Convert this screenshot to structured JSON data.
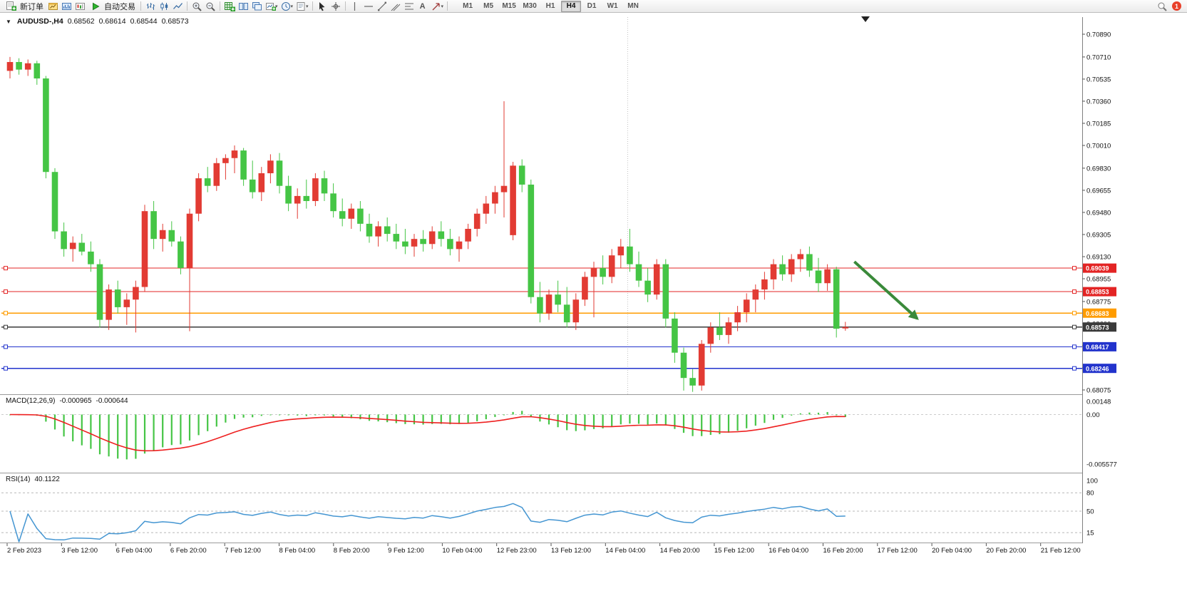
{
  "toolbar": {
    "new_order_label": "新订单",
    "auto_trading_label": "自动交易",
    "text_tool_glyph": "A",
    "timeframes": [
      "M1",
      "M5",
      "M15",
      "M30",
      "H1",
      "H4",
      "D1",
      "W1",
      "MN"
    ],
    "active_timeframe": "H4",
    "notification_count": "1"
  },
  "chart_header": {
    "symbol_period": "AUDUSD-,H4",
    "open": "0.68562",
    "high": "0.68614",
    "low": "0.68544",
    "close": "0.68573",
    "one_click_glyph": "▼"
  },
  "price_axis_labels": [
    "0.70890",
    "0.70710",
    "0.70535",
    "0.70360",
    "0.70185",
    "0.70010",
    "0.69830",
    "0.69655",
    "0.69480",
    "0.69305",
    "0.69130",
    "0.68955",
    "0.68775",
    "0.68600",
    "0.68425",
    "0.68250",
    "0.68075"
  ],
  "time_axis_labels": [
    "2 Feb 2023",
    "3 Feb 12:00",
    "6 Feb 04:00",
    "6 Feb 20:00",
    "7 Feb 12:00",
    "8 Feb 04:00",
    "8 Feb 20:00",
    "9 Feb 12:00",
    "10 Feb 04:00",
    "12 Feb 23:00",
    "13 Feb 12:00",
    "14 Feb 04:00",
    "14 Feb 20:00",
    "15 Feb 12:00",
    "16 Feb 04:00",
    "16 Feb 20:00",
    "17 Feb 12:00",
    "20 Feb 04:00",
    "20 Feb 20:00",
    "21 Feb 12:00"
  ],
  "hlines": [
    {
      "price": 0.69039,
      "label": "0.69039",
      "color": "#e32424",
      "kind": "resistance-line"
    },
    {
      "price": 0.68853,
      "label": "0.68853",
      "color": "#e32424",
      "kind": "resistance-line"
    },
    {
      "price": 0.68683,
      "label": "0.68683",
      "color": "#ff9c00",
      "kind": "support-line"
    },
    {
      "price": 0.68573,
      "label": "0.68573",
      "color": "#3a3a3a",
      "kind": "current-price-line"
    },
    {
      "price": 0.68417,
      "label": "0.68417",
      "color": "#2233cc",
      "kind": "support-line"
    },
    {
      "price": 0.68246,
      "label": "0.68246",
      "color": "#2233cc",
      "kind": "support-line"
    }
  ],
  "arrow": {
    "from_bar": 94,
    "from_price": 0.6909,
    "to_bar": 101,
    "to_price": 0.6864,
    "color": "#3a8a3a"
  },
  "macd_panel": {
    "title": "MACD(12,26,9)",
    "value_main": "-0.000965",
    "value_signal": "-0.000644",
    "axis_labels": [
      {
        "v": 0.00148,
        "label": "0.00148"
      },
      {
        "v": 0,
        "label": "0.00"
      },
      {
        "v": -0.005577,
        "label": "-0.005577"
      }
    ]
  },
  "rsi_panel": {
    "title": "RSI(14)",
    "value": "40.1122",
    "axis_labels": [
      {
        "v": 100,
        "label": "100"
      },
      {
        "v": 80,
        "label": "80"
      },
      {
        "v": 50,
        "label": "50"
      },
      {
        "v": 15,
        "label": "15"
      }
    ],
    "levels": [
      80,
      50,
      15
    ]
  },
  "colors": {
    "bull": "#e23b33",
    "bear": "#45c545",
    "macd_hist": "#45c545",
    "macd_signal": "#ee2020",
    "rsi_line": "#4596d2",
    "line_red": "#e32424",
    "line_orange": "#ff9c00",
    "line_blue": "#2233cc",
    "line_black": "#3a3a3a",
    "arrow_green": "#3a8a3a"
  },
  "chart_data": {
    "type": "candlestick",
    "symbol": "AUDUSD-",
    "period": "H4",
    "color_convention": "CN: red = up, green = down",
    "price_range": [
      0.68075,
      0.7089
    ],
    "indicators": [
      "MACD(12,26,9)",
      "RSI(14)"
    ],
    "candles": [
      [
        0.706,
        0.7071,
        0.7054,
        0.7067
      ],
      [
        0.7067,
        0.707,
        0.7057,
        0.7061
      ],
      [
        0.7061,
        0.7069,
        0.7056,
        0.7066
      ],
      [
        0.7066,
        0.7068,
        0.7049,
        0.7054
      ],
      [
        0.7054,
        0.7056,
        0.6975,
        0.698
      ],
      [
        0.698,
        0.6983,
        0.6927,
        0.6933
      ],
      [
        0.6933,
        0.694,
        0.6913,
        0.6919
      ],
      [
        0.6919,
        0.6929,
        0.6909,
        0.6924
      ],
      [
        0.6924,
        0.6931,
        0.6914,
        0.6917
      ],
      [
        0.6917,
        0.6925,
        0.6901,
        0.6907
      ],
      [
        0.6907,
        0.6911,
        0.6857,
        0.6863
      ],
      [
        0.6863,
        0.6891,
        0.6855,
        0.6887
      ],
      [
        0.6887,
        0.6894,
        0.6868,
        0.6873
      ],
      [
        0.6873,
        0.6884,
        0.6859,
        0.6879
      ],
      [
        0.6879,
        0.6894,
        0.6853,
        0.6889
      ],
      [
        0.6889,
        0.6954,
        0.6885,
        0.6949
      ],
      [
        0.6949,
        0.6957,
        0.6919,
        0.6927
      ],
      [
        0.6927,
        0.6939,
        0.6917,
        0.6934
      ],
      [
        0.6934,
        0.6941,
        0.6921,
        0.6925
      ],
      [
        0.6925,
        0.6929,
        0.6899,
        0.6904
      ],
      [
        0.6904,
        0.6951,
        0.6854,
        0.6947
      ],
      [
        0.6947,
        0.6979,
        0.6941,
        0.6975
      ],
      [
        0.6975,
        0.6984,
        0.6964,
        0.6969
      ],
      [
        0.6969,
        0.6991,
        0.6965,
        0.6987
      ],
      [
        0.6987,
        0.6994,
        0.6974,
        0.6991
      ],
      [
        0.6991,
        0.7001,
        0.6979,
        0.6997
      ],
      [
        0.6997,
        0.6999,
        0.6969,
        0.6974
      ],
      [
        0.6974,
        0.6989,
        0.6959,
        0.6964
      ],
      [
        0.6964,
        0.6984,
        0.6957,
        0.6979
      ],
      [
        0.6979,
        0.6994,
        0.6971,
        0.6989
      ],
      [
        0.6989,
        0.6995,
        0.6963,
        0.6969
      ],
      [
        0.6969,
        0.6977,
        0.6949,
        0.6955
      ],
      [
        0.6955,
        0.6967,
        0.6943,
        0.6961
      ],
      [
        0.6961,
        0.6974,
        0.6951,
        0.6957
      ],
      [
        0.6957,
        0.6979,
        0.6953,
        0.6975
      ],
      [
        0.6975,
        0.6981,
        0.6957,
        0.6963
      ],
      [
        0.6963,
        0.6971,
        0.6944,
        0.6949
      ],
      [
        0.6949,
        0.6959,
        0.6937,
        0.6943
      ],
      [
        0.6943,
        0.6955,
        0.6935,
        0.6951
      ],
      [
        0.6951,
        0.6957,
        0.6933,
        0.6939
      ],
      [
        0.6939,
        0.6947,
        0.6924,
        0.6929
      ],
      [
        0.6929,
        0.6941,
        0.6921,
        0.6937
      ],
      [
        0.6937,
        0.6944,
        0.6925,
        0.6931
      ],
      [
        0.6931,
        0.6939,
        0.6919,
        0.6925
      ],
      [
        0.6925,
        0.6935,
        0.6915,
        0.6921
      ],
      [
        0.6921,
        0.6931,
        0.6913,
        0.6927
      ],
      [
        0.6927,
        0.6934,
        0.6917,
        0.6923
      ],
      [
        0.6923,
        0.6937,
        0.6919,
        0.6933
      ],
      [
        0.6933,
        0.6941,
        0.6921,
        0.6927
      ],
      [
        0.6927,
        0.6935,
        0.6914,
        0.6919
      ],
      [
        0.6919,
        0.6929,
        0.6909,
        0.6925
      ],
      [
        0.6925,
        0.6939,
        0.6919,
        0.6935
      ],
      [
        0.6935,
        0.6951,
        0.6929,
        0.6947
      ],
      [
        0.6947,
        0.6961,
        0.6939,
        0.6955
      ],
      [
        0.6955,
        0.6969,
        0.6947,
        0.6964
      ],
      [
        0.6964,
        0.7036,
        0.6944,
        0.6969
      ],
      [
        0.693,
        0.6988,
        0.6926,
        0.6985
      ],
      [
        0.6985,
        0.699,
        0.6964,
        0.697
      ],
      [
        0.697,
        0.6974,
        0.6876,
        0.6881
      ],
      [
        0.6881,
        0.6893,
        0.6861,
        0.6868
      ],
      [
        0.6868,
        0.6887,
        0.6863,
        0.6883
      ],
      [
        0.6883,
        0.6894,
        0.6869,
        0.6875
      ],
      [
        0.6875,
        0.6889,
        0.6857,
        0.6861
      ],
      [
        0.6861,
        0.6884,
        0.6855,
        0.6879
      ],
      [
        0.6879,
        0.6901,
        0.6874,
        0.6897
      ],
      [
        0.6897,
        0.6909,
        0.6865,
        0.6904
      ],
      [
        0.6904,
        0.6914,
        0.6891,
        0.6897
      ],
      [
        0.6897,
        0.6919,
        0.6892,
        0.6914
      ],
      [
        0.6914,
        0.6927,
        0.6904,
        0.6921
      ],
      [
        0.6921,
        0.6935,
        0.6901,
        0.6907
      ],
      [
        0.6907,
        0.6917,
        0.6889,
        0.6894
      ],
      [
        0.6894,
        0.6904,
        0.6877,
        0.6883
      ],
      [
        0.6883,
        0.6911,
        0.6879,
        0.6907
      ],
      [
        0.6907,
        0.6911,
        0.6857,
        0.6864
      ],
      [
        0.6864,
        0.6869,
        0.6829,
        0.6837
      ],
      [
        0.6837,
        0.6841,
        0.6807,
        0.6817
      ],
      [
        0.6817,
        0.6824,
        0.6806,
        0.6811
      ],
      [
        0.6811,
        0.6847,
        0.6807,
        0.6844
      ],
      [
        0.6844,
        0.6861,
        0.6837,
        0.6857
      ],
      [
        0.6857,
        0.6869,
        0.6847,
        0.6851
      ],
      [
        0.6851,
        0.6865,
        0.6844,
        0.6861
      ],
      [
        0.6861,
        0.6874,
        0.6854,
        0.6869
      ],
      [
        0.6869,
        0.6884,
        0.6861,
        0.6879
      ],
      [
        0.6879,
        0.6891,
        0.6869,
        0.6887
      ],
      [
        0.6887,
        0.6901,
        0.6879,
        0.6895
      ],
      [
        0.6895,
        0.6911,
        0.6887,
        0.6907
      ],
      [
        0.6907,
        0.6914,
        0.6894,
        0.6899
      ],
      [
        0.6899,
        0.6915,
        0.6893,
        0.6911
      ],
      [
        0.6911,
        0.6919,
        0.6901,
        0.6915
      ],
      [
        0.6915,
        0.6921,
        0.6897,
        0.6902
      ],
      [
        0.6902,
        0.6912,
        0.6885,
        0.6892
      ],
      [
        0.6892,
        0.6907,
        0.6886,
        0.6903
      ],
      [
        0.6903,
        0.6905,
        0.6849,
        0.6856
      ],
      [
        0.68562,
        0.68614,
        0.68544,
        0.68573
      ]
    ]
  }
}
